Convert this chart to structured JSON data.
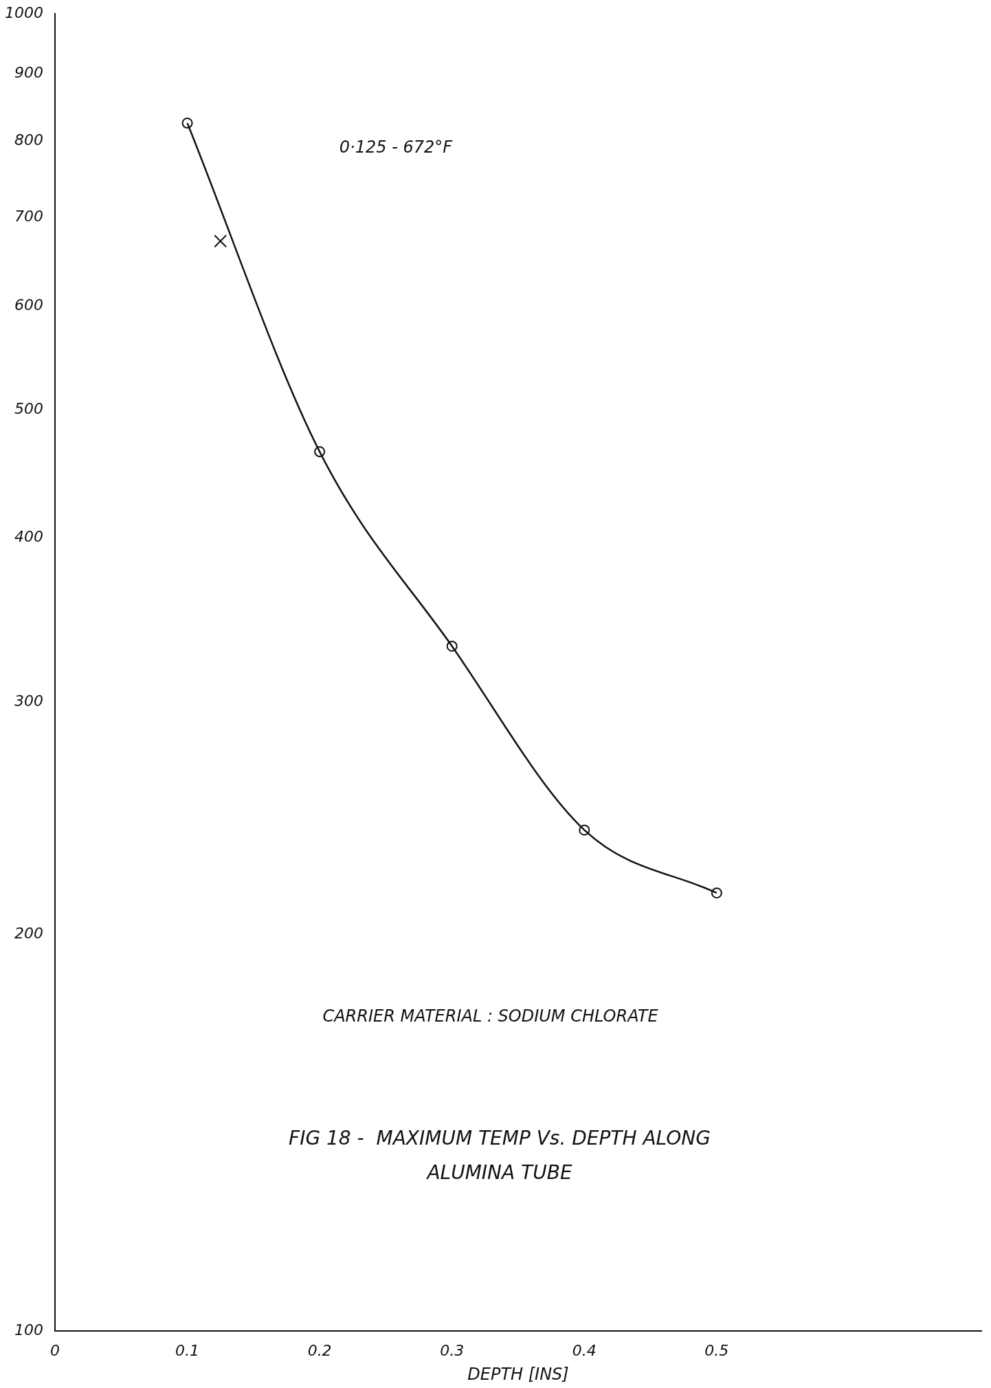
{
  "chart_data": {
    "type": "line",
    "title": "FIG 18 -  MAXIMUM TEMP Vs. DEPTH ALONG ALUMINA TUBE",
    "xlabel": "DEPTH [INS]",
    "x": [
      0.1,
      0.2,
      0.3,
      0.4,
      0.5
    ],
    "series": [
      {
        "color": "#111111",
        "values": [
          826,
          465,
          331,
          240,
          215
        ]
      },
      {
        "type": "scatter",
        "color": "#111111",
        "marker": "cross",
        "x": [
          0.125
        ],
        "values": [
          672
        ]
      }
    ],
    "xlim": [
      0,
      0.7
    ],
    "xticks": [
      0,
      0.1,
      0.2,
      0.3,
      0.4,
      0.5
    ],
    "ylim": [
      100,
      1000
    ],
    "yticks": [
      100,
      200,
      300,
      400,
      500,
      600,
      700,
      800,
      900,
      1000
    ],
    "log": "y",
    "grid": false,
    "legend": false,
    "marker": "circle",
    "line_style": "solid",
    "annotations": [
      "0·125 - 672°F",
      "CARRIER MATERIAL : SODIUM CHLORATE"
    ]
  }
}
